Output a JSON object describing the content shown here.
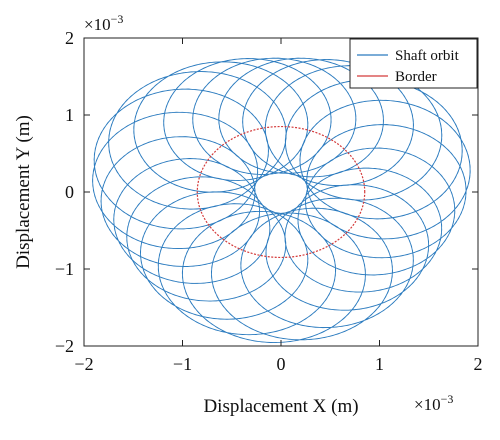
{
  "chart_data": {
    "type": "line",
    "title": "",
    "xlabel": "Displacement X (m)",
    "ylabel": "Displacement Y (m)",
    "x_exponent_label": "×10",
    "y_exponent_label": "×10",
    "exponent": "−3",
    "xlim": [
      -2,
      2
    ],
    "ylim": [
      -2,
      2
    ],
    "xticks": [
      -2,
      -1,
      0,
      1,
      2
    ],
    "yticks": [
      -2,
      -1,
      0,
      1,
      2
    ],
    "xtick_labels": [
      "−2",
      "−1",
      "0",
      "1",
      "2"
    ],
    "ytick_labels": [
      "−2",
      "−1",
      "0",
      "1",
      "2"
    ],
    "units_scale": "1e-3",
    "grid": false,
    "legend_position": "top-right",
    "series": [
      {
        "name": "Shaft orbit",
        "color": "#2b7bbf",
        "description_shape": "rosette of overlapping loops",
        "params": {
          "inner_hole_radius_approx": 0.28,
          "outer_radius_x_approx": 1.88,
          "outer_radius_y_approx": 1.85,
          "loop_radius_approx": 0.8,
          "precession_center_radius_approx": 1.06,
          "loops": 24
        }
      },
      {
        "name": "Border",
        "color": "#d43a3a",
        "shape": "circle",
        "center": [
          0,
          0
        ],
        "radius": 0.85
      }
    ]
  }
}
